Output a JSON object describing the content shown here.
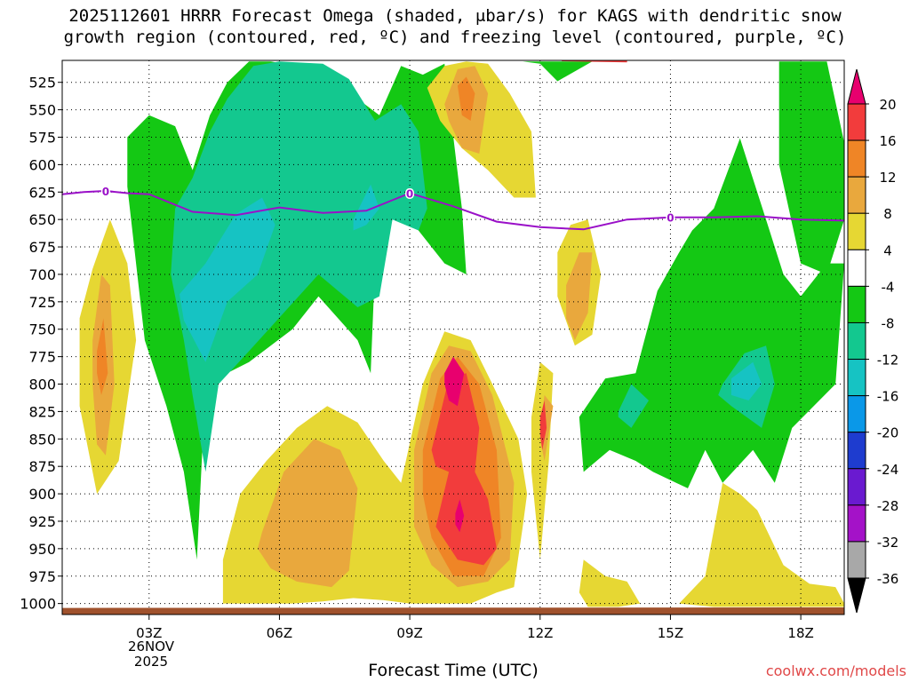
{
  "chart_data": {
    "type": "heatmap",
    "title": [
      "2025112601 HRRR Forecast Omega (shaded, μbar/s) for KAGS with dendritic snow",
      "growth region (contoured, red, ºC) and freezing level (contoured, purple, ºC)"
    ],
    "xlabel": "Forecast Time (UTC)",
    "ylabel": "",
    "watermark": "coolwx.com/models",
    "xlim": [
      1,
      19
    ],
    "ylim": [
      1010,
      505
    ],
    "x_ticks": [
      {
        "x": 3,
        "label": "03Z"
      },
      {
        "x": 6,
        "label": "06Z"
      },
      {
        "x": 9,
        "label": "09Z"
      },
      {
        "x": 12,
        "label": "12Z"
      },
      {
        "x": 15,
        "label": "15Z"
      },
      {
        "x": 18,
        "label": "18Z"
      }
    ],
    "date_label": [
      "26NOV",
      "2025"
    ],
    "y_ticks": [
      525,
      550,
      575,
      600,
      625,
      650,
      675,
      700,
      725,
      750,
      775,
      800,
      825,
      850,
      875,
      900,
      925,
      950,
      975,
      1000
    ],
    "colorbar": {
      "labels": [
        "20",
        "16",
        "12",
        "8",
        "4",
        "-4",
        "-8",
        "-12",
        "-16",
        "-20",
        "-24",
        "-28",
        "-32",
        "-36"
      ],
      "colors": [
        "#e8006e",
        "#f23c3c",
        "#ef8526",
        "#e9a83d",
        "#e6d733",
        "#ffffff",
        "#14c814",
        "#13c88f",
        "#16c3c3",
        "#0a98e8",
        "#1e3ccf",
        "#6a1ad0",
        "#a412c8",
        "#a8a8a8",
        "#000000"
      ]
    },
    "colors": {
      "freezing_line": "#9a10c8",
      "dgz_line": "#f03c3c",
      "ground": "#a0522d",
      "watermark": "#e04848"
    },
    "freezing_level_label": "0",
    "freezing_level": {
      "x": [
        1,
        1.5,
        2,
        2.5,
        3,
        4,
        5,
        6,
        7,
        8,
        9,
        10,
        11,
        12,
        13,
        14,
        15,
        16,
        17,
        18,
        19
      ],
      "pressure": [
        627,
        625,
        624,
        626,
        627,
        643,
        646,
        639,
        644,
        642,
        626,
        638,
        652,
        657,
        659,
        650,
        648,
        648,
        647,
        650,
        651
      ]
    },
    "dgz_contour": {
      "x": [
        12.5,
        14
      ],
      "pressure": [
        505,
        506
      ]
    },
    "omega_regions": [
      {
        "level": -4,
        "color": "#14c814",
        "x": [
          2.5,
          3,
          3.6,
          4,
          4.4,
          4.8,
          5.3,
          5.8,
          6.4,
          7,
          7.3,
          7.8,
          8.3,
          8.8,
          9.3,
          9.8,
          10.2,
          10.3,
          9.8,
          9.3,
          8.8,
          8.3,
          8.1,
          7.8,
          6.9,
          6.3,
          5.3,
          4.3,
          4.1,
          3.8,
          3.4,
          2.9,
          2.5
        ],
        "p": [
          575,
          555,
          565,
          605,
          555,
          525,
          506,
          506,
          510,
          530,
          516,
          540,
          555,
          510,
          518,
          508,
          640,
          700,
          690,
          665,
          640,
          595,
          790,
          760,
          720,
          750,
          780,
          800,
          960,
          880,
          820,
          760,
          620
        ]
      },
      {
        "level": -4,
        "color": "#14c814",
        "x": [
          11.6,
          12,
          12.4,
          13.2
        ],
        "p": [
          506,
          508,
          524,
          506
        ]
      },
      {
        "level": -4,
        "color": "#14c814",
        "x": [
          12.9,
          13.5,
          14.2,
          14.7,
          15.2,
          15.5,
          16,
          16.6,
          17.2,
          17.6,
          18,
          18.6,
          19,
          18.8,
          17.8,
          17.4,
          16.9,
          16.2,
          15.8,
          15.4,
          14.6,
          14.2,
          13.6,
          13,
          12.9
        ],
        "p": [
          830,
          795,
          790,
          715,
          680,
          660,
          640,
          576,
          650,
          700,
          720,
          690,
          690,
          800,
          840,
          890,
          860,
          890,
          860,
          895,
          880,
          870,
          860,
          880,
          830
        ]
      },
      {
        "level": -4,
        "color": "#14c814",
        "x": [
          17.5,
          18,
          18.6,
          19,
          19,
          18.6,
          18,
          17.5
        ],
        "p": [
          506,
          506,
          506,
          580,
          650,
          700,
          690,
          600
        ]
      },
      {
        "level": -8,
        "color": "#13c88f",
        "x": [
          3.6,
          4,
          4.4,
          4.8,
          5.4,
          6,
          7,
          7.6,
          8.2,
          8.8,
          9.2,
          9.4,
          9.2,
          8.6,
          8.3,
          7.8,
          6.9,
          6.1,
          5.3,
          4.6,
          4.3,
          4,
          3.8,
          3.5
        ],
        "p": [
          640,
          612,
          570,
          540,
          510,
          506,
          508,
          522,
          560,
          545,
          570,
          640,
          660,
          650,
          720,
          730,
          700,
          735,
          770,
          800,
          880,
          810,
          760,
          700
        ]
      },
      {
        "level": -8,
        "color": "#13c88f",
        "x": [
          16.2,
          16.7,
          17.2,
          17.4,
          17.1,
          16.4,
          16.1
        ],
        "p": [
          800,
          772,
          765,
          800,
          840,
          820,
          810
        ]
      },
      {
        "level": -8,
        "color": "#13c88f",
        "x": [
          13.8,
          14.1,
          14.5,
          14.1,
          13.8
        ],
        "p": [
          825,
          800,
          815,
          840,
          830
        ]
      },
      {
        "level": -12,
        "color": "#16c3c3",
        "x": [
          3.7,
          4.3,
          5,
          5.6,
          5.9,
          5.5,
          4.8,
          4.3,
          3.8
        ],
        "p": [
          718,
          690,
          645,
          630,
          655,
          700,
          725,
          780,
          742
        ]
      },
      {
        "level": -12,
        "color": "#16c3c3",
        "x": [
          7.7,
          8.1,
          8.3,
          8,
          7.7
        ],
        "p": [
          650,
          618,
          640,
          655,
          660
        ]
      },
      {
        "level": -12,
        "color": "#16c3c3",
        "x": [
          16.4,
          16.9,
          17.1,
          16.8,
          16.4
        ],
        "p": [
          795,
          780,
          800,
          815,
          810
        ]
      },
      {
        "level": 4,
        "color": "#e6d733",
        "x": [
          1.4,
          1.7,
          2.1,
          2.5,
          2.7,
          2.3,
          1.8,
          1.4
        ],
        "p": [
          740,
          695,
          650,
          690,
          760,
          870,
          900,
          820
        ]
      },
      {
        "level": 4,
        "color": "#e6d733",
        "x": [
          9.4,
          9.8,
          10.3,
          10.8,
          11.3,
          11.8,
          11.9,
          11.4,
          10.8,
          10.2,
          9.7,
          9.4
        ],
        "p": [
          530,
          510,
          506,
          508,
          535,
          570,
          630,
          630,
          605,
          585,
          560,
          530
        ]
      },
      {
        "level": 4,
        "color": "#e6d733",
        "x": [
          12.4,
          12.7,
          13.1,
          13.4,
          13.2,
          12.8,
          12.4
        ],
        "p": [
          680,
          655,
          650,
          700,
          755,
          765,
          720
        ]
      },
      {
        "level": 4,
        "color": "#e6d733",
        "x": [
          11.8,
          12,
          12.3,
          12.2,
          12,
          11.8
        ],
        "p": [
          830,
          780,
          790,
          870,
          960,
          880
        ]
      },
      {
        "level": 4,
        "color": "#e6d733",
        "x": [
          4.7,
          5.1,
          5.7,
          6.4,
          7.1,
          7.8,
          8.4,
          8.8,
          9.3,
          9.8,
          10.4,
          10.9,
          11.5,
          11.7,
          11.6,
          11.4,
          11,
          10.4,
          9.6,
          9,
          8.4,
          7.7,
          7,
          6.3,
          5.4,
          4.7
        ],
        "p": [
          960,
          900,
          870,
          840,
          820,
          835,
          870,
          890,
          800,
          752,
          760,
          800,
          850,
          900,
          930,
          985,
          990,
          1000,
          1000,
          1000,
          997,
          995,
          998,
          1000,
          1000,
          1000
        ]
      },
      {
        "level": 4,
        "color": "#e6d733",
        "x": [
          13,
          13.5,
          14,
          14.3,
          13.8,
          13.1,
          12.9
        ],
        "p": [
          960,
          975,
          980,
          1000,
          1003,
          1003,
          990
        ]
      },
      {
        "level": 4,
        "color": "#e6d733",
        "x": [
          15.2,
          15.8,
          16.2,
          16.6,
          17,
          17.6,
          18.2,
          18.8,
          19,
          19,
          18,
          17,
          16,
          15.2
        ],
        "p": [
          1000,
          975,
          890,
          900,
          915,
          965,
          982,
          985,
          1000,
          1003,
          1003,
          1003,
          1003,
          1000
        ]
      },
      {
        "level": 8,
        "color": "#e9a83d",
        "x": [
          1.7,
          1.9,
          2.1,
          2.2,
          2,
          1.8,
          1.7
        ],
        "p": [
          760,
          700,
          710,
          800,
          865,
          855,
          800
        ]
      },
      {
        "level": 8,
        "color": "#e9a83d",
        "x": [
          9.8,
          10.1,
          10.5,
          10.8,
          10.6,
          10.2,
          9.9
        ],
        "p": [
          545,
          513,
          510,
          535,
          590,
          585,
          560
        ]
      },
      {
        "level": 8,
        "color": "#e9a83d",
        "x": [
          12.6,
          12.9,
          13.2,
          13.1,
          12.8,
          12.6
        ],
        "p": [
          710,
          680,
          680,
          735,
          760,
          740
        ]
      },
      {
        "level": 8,
        "color": "#e9a83d",
        "x": [
          12,
          12.1,
          12.3,
          12.1,
          12
        ],
        "p": [
          840,
          810,
          820,
          870,
          850
        ]
      },
      {
        "level": 8,
        "color": "#e9a83d",
        "x": [
          5.6,
          6.1,
          6.8,
          7.4,
          7.8,
          7.6,
          7.2,
          6.4,
          5.8,
          5.5
        ],
        "p": [
          935,
          880,
          850,
          860,
          895,
          970,
          985,
          980,
          968,
          950
        ]
      },
      {
        "level": 8,
        "color": "#e9a83d",
        "x": [
          9.1,
          9.5,
          9.9,
          10.4,
          10.9,
          11.4,
          11.3,
          10.8,
          10.1,
          9.5,
          9.1
        ],
        "p": [
          860,
          790,
          765,
          770,
          810,
          890,
          960,
          980,
          985,
          965,
          930
        ]
      },
      {
        "level": 12,
        "color": "#ef8526",
        "x": [
          1.8,
          1.95,
          2.05,
          1.9,
          1.8
        ],
        "p": [
          770,
          740,
          790,
          810,
          790
        ]
      },
      {
        "level": 12,
        "color": "#ef8526",
        "x": [
          10.1,
          10.3,
          10.5,
          10.4,
          10.2
        ],
        "p": [
          528,
          520,
          535,
          560,
          555
        ]
      },
      {
        "level": 12,
        "color": "#ef8526",
        "x": [
          9.3,
          9.7,
          10.1,
          10.6,
          11,
          11.1,
          10.7,
          10,
          9.5,
          9.3
        ],
        "p": [
          860,
          795,
          775,
          800,
          860,
          940,
          975,
          975,
          940,
          900
        ]
      },
      {
        "level": 16,
        "color": "#f23c3c",
        "x": [
          9.5,
          9.9,
          10.3,
          10.6,
          10.5,
          10.8,
          11,
          10.7,
          10.1,
          9.6,
          9.9,
          9.6,
          9.5
        ],
        "p": [
          860,
          795,
          790,
          840,
          880,
          905,
          950,
          965,
          960,
          930,
          880,
          875,
          860
        ]
      },
      {
        "level": 16,
        "color": "#f23c3c",
        "x": [
          12.0,
          12.1,
          12.15,
          12.05,
          12.0
        ],
        "p": [
          830,
          815,
          840,
          860,
          845
        ]
      },
      {
        "level": 20,
        "color": "#e8006e",
        "x": [
          9.8,
          10.0,
          10.25,
          10.1,
          9.9,
          9.8
        ],
        "p": [
          790,
          775,
          790,
          820,
          815,
          800
        ]
      },
      {
        "level": 20,
        "color": "#e8006e",
        "x": [
          10.05,
          10.15,
          10.25,
          10.15,
          10.05
        ],
        "p": [
          918,
          905,
          920,
          935,
          928
        ]
      }
    ]
  }
}
